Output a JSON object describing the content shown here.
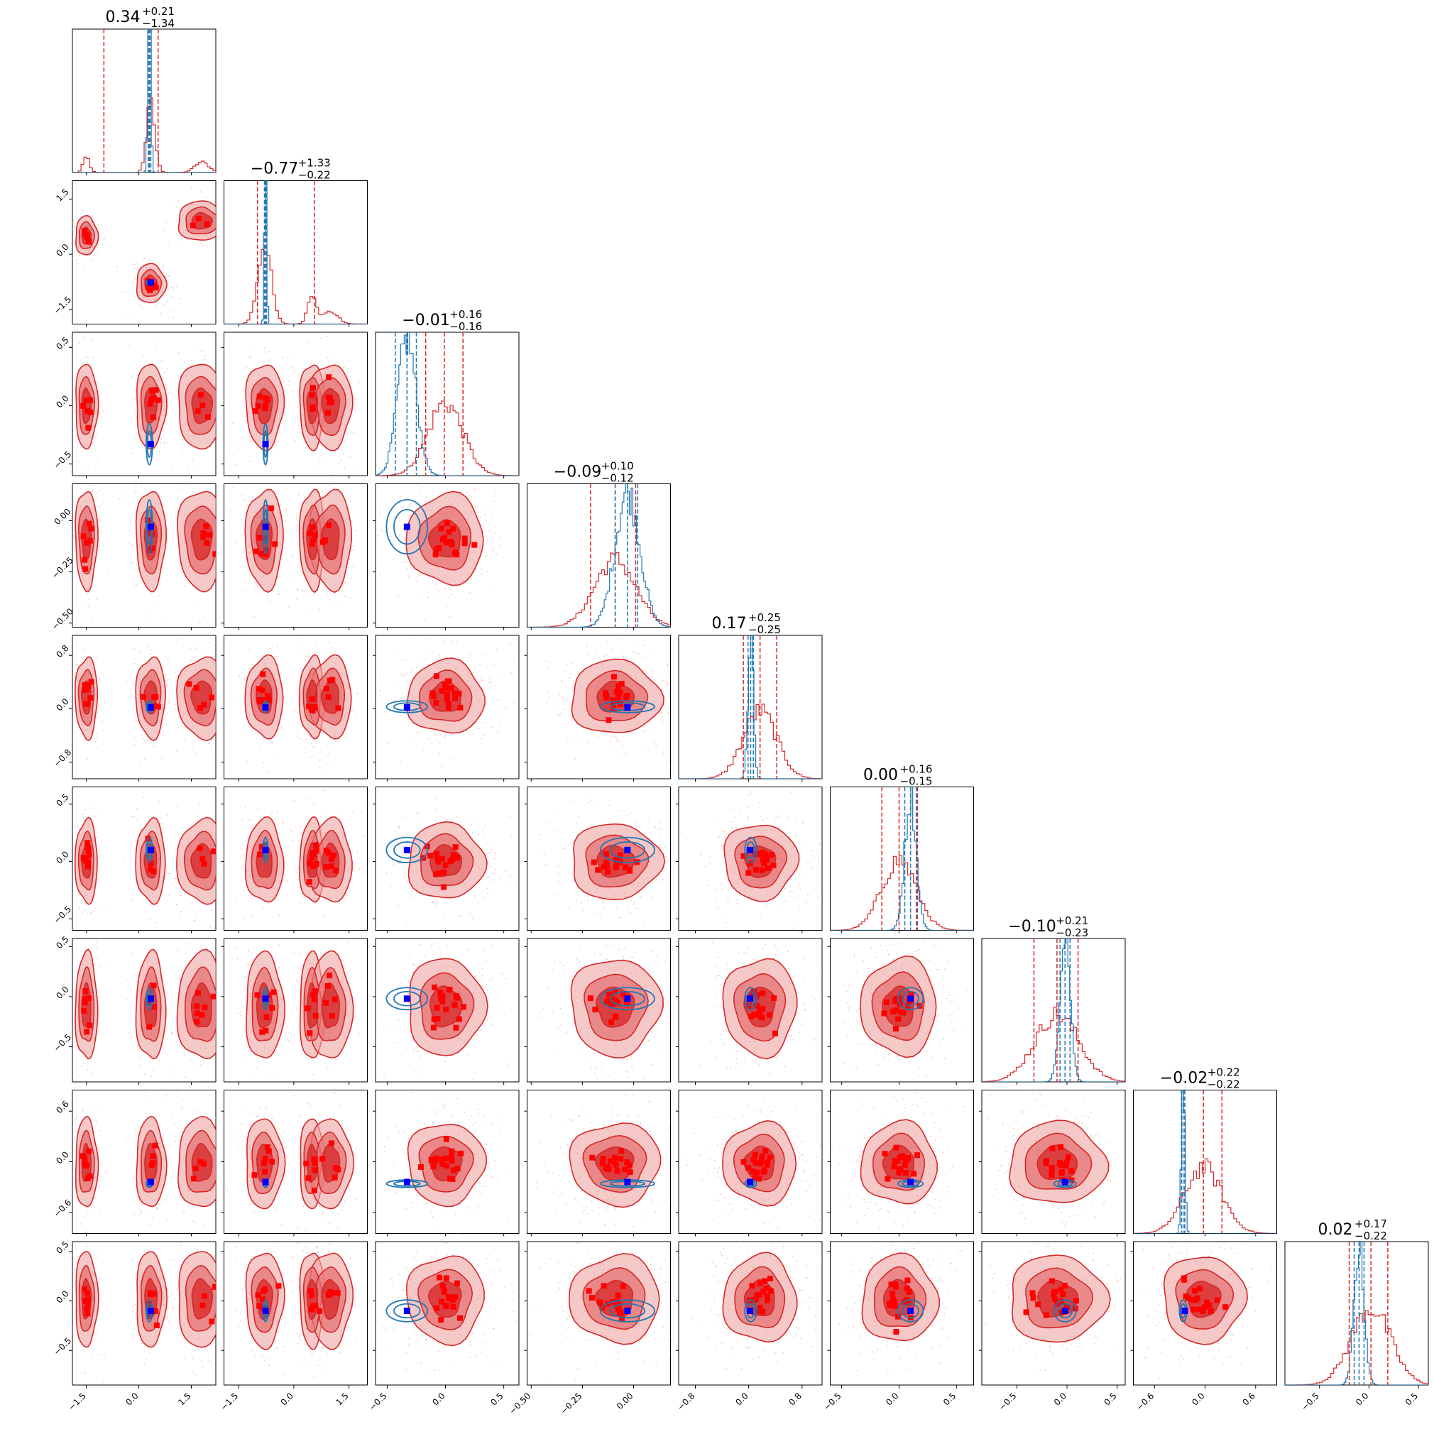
{
  "chart_data": {
    "type": "corner",
    "parameters": [
      {
        "title": {
          "value": "0.34",
          "plus": "+0.21",
          "minus": "−1.34"
        },
        "axis_range": [
          -1.9,
          2.2
        ],
        "ticks": [
          {
            "v": -1.5,
            "label": "−1.5"
          },
          {
            "v": 0.0,
            "label": "0.0"
          },
          {
            "v": 1.5,
            "label": "1.5"
          }
        ],
        "blue_marker": 0.34,
        "modes": [
          {
            "mu": -1.5,
            "sd": 0.09,
            "w": 0.12
          },
          {
            "mu": 0.34,
            "sd": 0.12,
            "w": 0.7
          },
          {
            "mu": 1.8,
            "sd": 0.2,
            "w": 0.18
          }
        ],
        "blue_hist": {
          "mu": 0.3,
          "sd": 0.04
        },
        "red_quantiles": [
          -1.0,
          0.34,
          0.55
        ],
        "blue_quantiles": [
          0.27,
          0.3,
          0.34
        ]
      },
      {
        "title": {
          "value": "−0.77",
          "plus": "+1.33",
          "minus": "−0.22"
        },
        "axis_range": [
          -1.9,
          2.0
        ],
        "ticks": [
          {
            "v": -1.5,
            "label": "−1.5"
          },
          {
            "v": 0.0,
            "label": "0.0"
          },
          {
            "v": 1.5,
            "label": "1.5"
          }
        ],
        "blue_marker": -0.77,
        "modes": [
          {
            "mu": -0.8,
            "sd": 0.18,
            "w": 0.7
          },
          {
            "mu": 0.5,
            "sd": 0.12,
            "w": 0.18
          },
          {
            "mu": 1.0,
            "sd": 0.2,
            "w": 0.12
          }
        ],
        "blue_hist": {
          "mu": -0.77,
          "sd": 0.03
        },
        "red_quantiles": [
          -0.99,
          -0.77,
          0.56
        ],
        "blue_quantiles": [
          -0.8,
          -0.77,
          -0.74
        ]
      },
      {
        "title": {
          "value": "−0.01",
          "plus": "+0.16",
          "minus": "−0.16"
        },
        "axis_range": [
          -0.6,
          0.63
        ],
        "ticks": [
          {
            "v": -0.5,
            "label": "−0.5"
          },
          {
            "v": 0.0,
            "label": "0.0"
          },
          {
            "v": 0.5,
            "label": "0.5"
          }
        ],
        "blue_marker": -0.33,
        "modes": [
          {
            "mu": 0.0,
            "sd": 0.15,
            "w": 1.0
          }
        ],
        "blue_hist": {
          "mu": -0.33,
          "sd": 0.08
        },
        "red_quantiles": [
          -0.17,
          -0.01,
          0.15
        ],
        "blue_quantiles": [
          -0.43,
          -0.33,
          -0.25
        ]
      },
      {
        "title": {
          "value": "−0.09",
          "plus": "+0.10",
          "minus": "−0.12"
        },
        "axis_range": [
          -0.52,
          0.18
        ],
        "ticks": [
          {
            "v": -0.5,
            "label": "−0.50"
          },
          {
            "v": -0.25,
            "label": "−0.25"
          },
          {
            "v": 0.0,
            "label": "0.00"
          }
        ],
        "blue_marker": -0.03,
        "modes": [
          {
            "mu": -0.09,
            "sd": 0.1,
            "w": 1.0
          }
        ],
        "blue_hist": {
          "mu": -0.03,
          "sd": 0.06
        },
        "red_quantiles": [
          -0.21,
          -0.09,
          0.01
        ],
        "blue_quantiles": [
          -0.09,
          -0.03,
          0.02
        ]
      },
      {
        "title": {
          "value": "0.17",
          "plus": "+0.25",
          "minus": "−0.25"
        },
        "axis_range": [
          -1.05,
          1.1
        ],
        "ticks": [
          {
            "v": -0.8,
            "label": "−0.8"
          },
          {
            "v": 0.0,
            "label": "0.0"
          },
          {
            "v": 0.8,
            "label": "0.8"
          }
        ],
        "blue_marker": 0.02,
        "modes": [
          {
            "mu": 0.17,
            "sd": 0.25,
            "w": 1.0
          }
        ],
        "blue_hist": {
          "mu": 0.03,
          "sd": 0.04
        },
        "red_quantiles": [
          -0.08,
          0.17,
          0.42
        ],
        "blue_quantiles": [
          -0.01,
          0.03,
          0.07
        ]
      },
      {
        "title": {
          "value": "0.00",
          "plus": "+0.16",
          "minus": "−0.15"
        },
        "axis_range": [
          -0.6,
          0.65
        ],
        "ticks": [
          {
            "v": -0.5,
            "label": "−0.5"
          },
          {
            "v": 0.0,
            "label": "0.0"
          },
          {
            "v": 0.5,
            "label": "0.5"
          }
        ],
        "blue_marker": 0.1,
        "modes": [
          {
            "mu": 0.0,
            "sd": 0.15,
            "w": 1.0
          }
        ],
        "blue_hist": {
          "mu": 0.1,
          "sd": 0.05
        },
        "red_quantiles": [
          -0.15,
          0.0,
          0.16
        ],
        "blue_quantiles": [
          0.05,
          0.1,
          0.15
        ]
      },
      {
        "title": {
          "value": "−0.10",
          "plus": "+0.21",
          "minus": "−0.23"
        },
        "axis_range": [
          -0.85,
          0.58
        ],
        "ticks": [
          {
            "v": -0.5,
            "label": "−0.5"
          },
          {
            "v": 0.0,
            "label": "0.0"
          },
          {
            "v": 0.5,
            "label": "0.5"
          }
        ],
        "blue_marker": -0.02,
        "modes": [
          {
            "mu": -0.1,
            "sd": 0.22,
            "w": 1.0
          }
        ],
        "blue_hist": {
          "mu": -0.02,
          "sd": 0.05
        },
        "red_quantiles": [
          -0.33,
          -0.1,
          0.11
        ],
        "blue_quantiles": [
          -0.07,
          -0.02,
          0.03
        ]
      },
      {
        "title": {
          "value": "−0.02",
          "plus": "+0.22",
          "minus": "−0.22"
        },
        "axis_range": [
          -0.85,
          0.85
        ],
        "ticks": [
          {
            "v": -0.6,
            "label": "−0.6"
          },
          {
            "v": 0.0,
            "label": "0.0"
          },
          {
            "v": 0.6,
            "label": "0.6"
          }
        ],
        "blue_marker": -0.24,
        "modes": [
          {
            "mu": -0.02,
            "sd": 0.22,
            "w": 1.0
          }
        ],
        "blue_hist": {
          "mu": -0.26,
          "sd": 0.02
        },
        "red_quantiles": [
          -0.24,
          -0.02,
          0.2
        ],
        "blue_quantiles": [
          -0.28,
          -0.26,
          -0.24
        ]
      },
      {
        "title": {
          "value": "0.02",
          "plus": "+0.17",
          "minus": "−0.22"
        },
        "axis_range": [
          -0.85,
          0.6
        ],
        "ticks": [
          {
            "v": -0.5,
            "label": "−0.5"
          },
          {
            "v": 0.0,
            "label": "0.0"
          },
          {
            "v": 0.5,
            "label": "0.5"
          }
        ],
        "blue_marker": -0.1,
        "modes": [
          {
            "mu": 0.02,
            "sd": 0.2,
            "w": 1.0
          }
        ],
        "blue_hist": {
          "mu": -0.1,
          "sd": 0.05
        },
        "red_quantiles": [
          -0.2,
          0.02,
          0.19
        ],
        "blue_quantiles": [
          -0.15,
          -0.1,
          -0.05
        ]
      }
    ],
    "colors": {
      "red": "#d62728",
      "red_fill_light": "#f0a5a5",
      "red_fill_mid": "#e67373",
      "red_fill_dark": "#d62728",
      "red_points": "#ff0000",
      "blue": "#1f77b4",
      "blue_marker": "#0000ff"
    }
  }
}
